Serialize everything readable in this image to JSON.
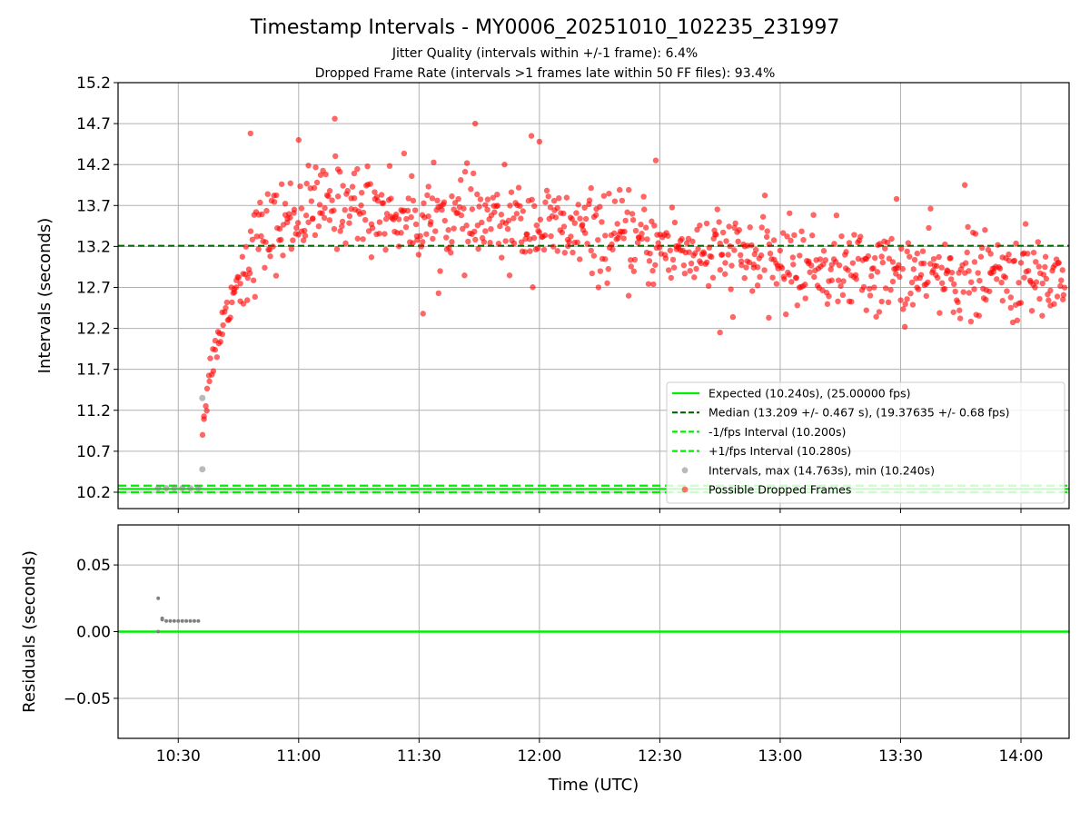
{
  "figure": {
    "title": "Timestamp Intervals - MY0006_20251010_102235_231997",
    "subtitle1": "Jitter Quality (intervals within +/-1 frame): 6.4%",
    "subtitle2": "Dropped Frame Rate (intervals >1 frames late within 50 FF files): 93.4%"
  },
  "chart_data": [
    {
      "type": "scatter",
      "ylabel": "Intervals (seconds)",
      "xlabel": "",
      "xlim": [
        "10:15",
        "14:12"
      ],
      "ylim": [
        10.0,
        15.2
      ],
      "x_ticks": [
        "10:30",
        "11:00",
        "11:30",
        "12:00",
        "12:30",
        "13:00",
        "13:30",
        "14:00"
      ],
      "y_ticks": [
        "10.2",
        "10.7",
        "11.2",
        "11.7",
        "12.2",
        "12.7",
        "13.2",
        "13.7",
        "14.2",
        "14.7",
        "15.2"
      ],
      "grid": true,
      "legend_position": "lower-right",
      "lines": [
        {
          "name": "Expected (10.240s), (25.00000 fps)",
          "y": 10.24,
          "style": "solid",
          "color": "#00ee00"
        },
        {
          "name": "Median (13.209 +/- 0.467 s), (19.37635 +/- 0.68 fps)",
          "y": 13.209,
          "style": "dashed",
          "color": "#006400"
        },
        {
          "name": "-1/fps Interval (10.200s)",
          "y": 10.2,
          "style": "dashed",
          "color": "#00ee00"
        },
        {
          "name": "+1/fps Interval (10.280s)",
          "y": 10.28,
          "style": "dashed",
          "color": "#00ee00"
        }
      ],
      "series": [
        {
          "name": "Intervals, max (14.763s), min (10.240s)",
          "color": "#808080",
          "marker": "circle",
          "points": [
            [
              "10:25",
              10.25
            ],
            [
              "10:27",
              10.25
            ],
            [
              "10:29",
              10.25
            ],
            [
              "10:31",
              10.25
            ],
            [
              "10:33",
              10.25
            ],
            [
              "10:35",
              10.25
            ],
            [
              "10:36",
              10.48
            ],
            [
              "10:36",
              11.35
            ]
          ]
        },
        {
          "name": "Possible Dropped Frames",
          "color": "#ff0000",
          "marker": "circle",
          "trend": [
            [
              "10:36",
              11.0
            ],
            [
              "10:38",
              11.7
            ],
            [
              "10:40",
              12.1
            ],
            [
              "10:44",
              12.7
            ],
            [
              "10:50",
              13.3
            ],
            [
              "11:00",
              13.6
            ],
            [
              "11:10",
              13.75
            ],
            [
              "11:30",
              13.55
            ],
            [
              "12:00",
              13.45
            ],
            [
              "12:30",
              13.2
            ],
            [
              "13:00",
              13.0
            ],
            [
              "13:30",
              12.85
            ],
            [
              "14:12",
              12.8
            ]
          ],
          "outliers": [
            [
              "10:48",
              14.58
            ],
            [
              "11:00",
              14.5
            ],
            [
              "11:09",
              14.76
            ],
            [
              "11:44",
              14.7
            ],
            [
              "11:58",
              14.55
            ],
            [
              "12:00",
              14.48
            ],
            [
              "12:29",
              14.25
            ],
            [
              "13:46",
              13.95
            ],
            [
              "13:29",
              13.78
            ],
            [
              "12:45",
              12.15
            ],
            [
              "11:31",
              12.38
            ]
          ]
        }
      ]
    },
    {
      "type": "scatter",
      "ylabel": "Residuals (seconds)",
      "xlabel": "Time (UTC)",
      "xlim": [
        "10:15",
        "14:12"
      ],
      "ylim": [
        -0.08,
        0.08
      ],
      "x_ticks": [
        "10:30",
        "11:00",
        "11:30",
        "12:00",
        "12:30",
        "13:00",
        "13:30",
        "14:00"
      ],
      "y_ticks": [
        "0.05",
        "0.00",
        "−0.05"
      ],
      "grid": true,
      "lines": [
        {
          "y": 0.0,
          "style": "solid",
          "color": "#00ee00"
        }
      ],
      "series": [
        {
          "color": "#808080",
          "marker": "circle",
          "points": [
            [
              "10:25",
              0.025
            ],
            [
              "10:25",
              0.0
            ],
            [
              "10:26",
              0.01
            ],
            [
              "10:26",
              0.009
            ],
            [
              "10:27",
              0.008
            ],
            [
              "10:28",
              0.008
            ],
            [
              "10:29",
              0.008
            ],
            [
              "10:30",
              0.008
            ],
            [
              "10:31",
              0.008
            ],
            [
              "10:32",
              0.008
            ],
            [
              "10:33",
              0.008
            ],
            [
              "10:34",
              0.008
            ],
            [
              "10:35",
              0.008
            ]
          ]
        }
      ]
    }
  ]
}
